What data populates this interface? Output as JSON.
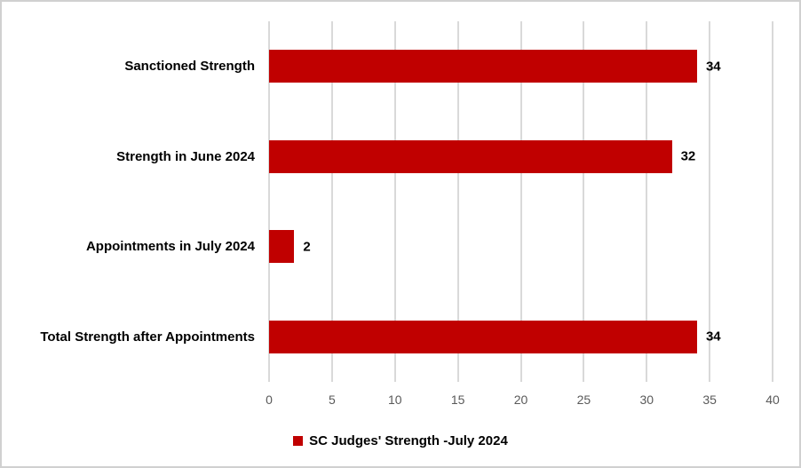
{
  "chart": {
    "colors": {
      "bar": "#c00000",
      "gridline": "#d9d9d9",
      "tick_text": "#595959",
      "label_text": "#000000",
      "background": "#ffffff",
      "border": "#d0d0d0"
    },
    "legend": {
      "label": "SC Judges' Strength -July 2024",
      "position": "bottom",
      "marker": "square",
      "marker_color": "#c00000"
    }
  },
  "chart_data": {
    "type": "bar",
    "orientation": "horizontal",
    "categories": [
      "Sanctioned Strength",
      "Strength in June 2024",
      "Appointments in July 2024",
      "Total Strength after Appointments"
    ],
    "values": [
      34,
      32,
      2,
      34
    ],
    "data_labels": [
      "34",
      "32",
      "2",
      "34"
    ],
    "series_name": "SC Judges' Strength -July 2024",
    "xlim": [
      0,
      40
    ],
    "xticks": [
      0,
      5,
      10,
      15,
      20,
      25,
      30,
      35,
      40
    ],
    "grid": true,
    "legend_position": "bottom"
  }
}
